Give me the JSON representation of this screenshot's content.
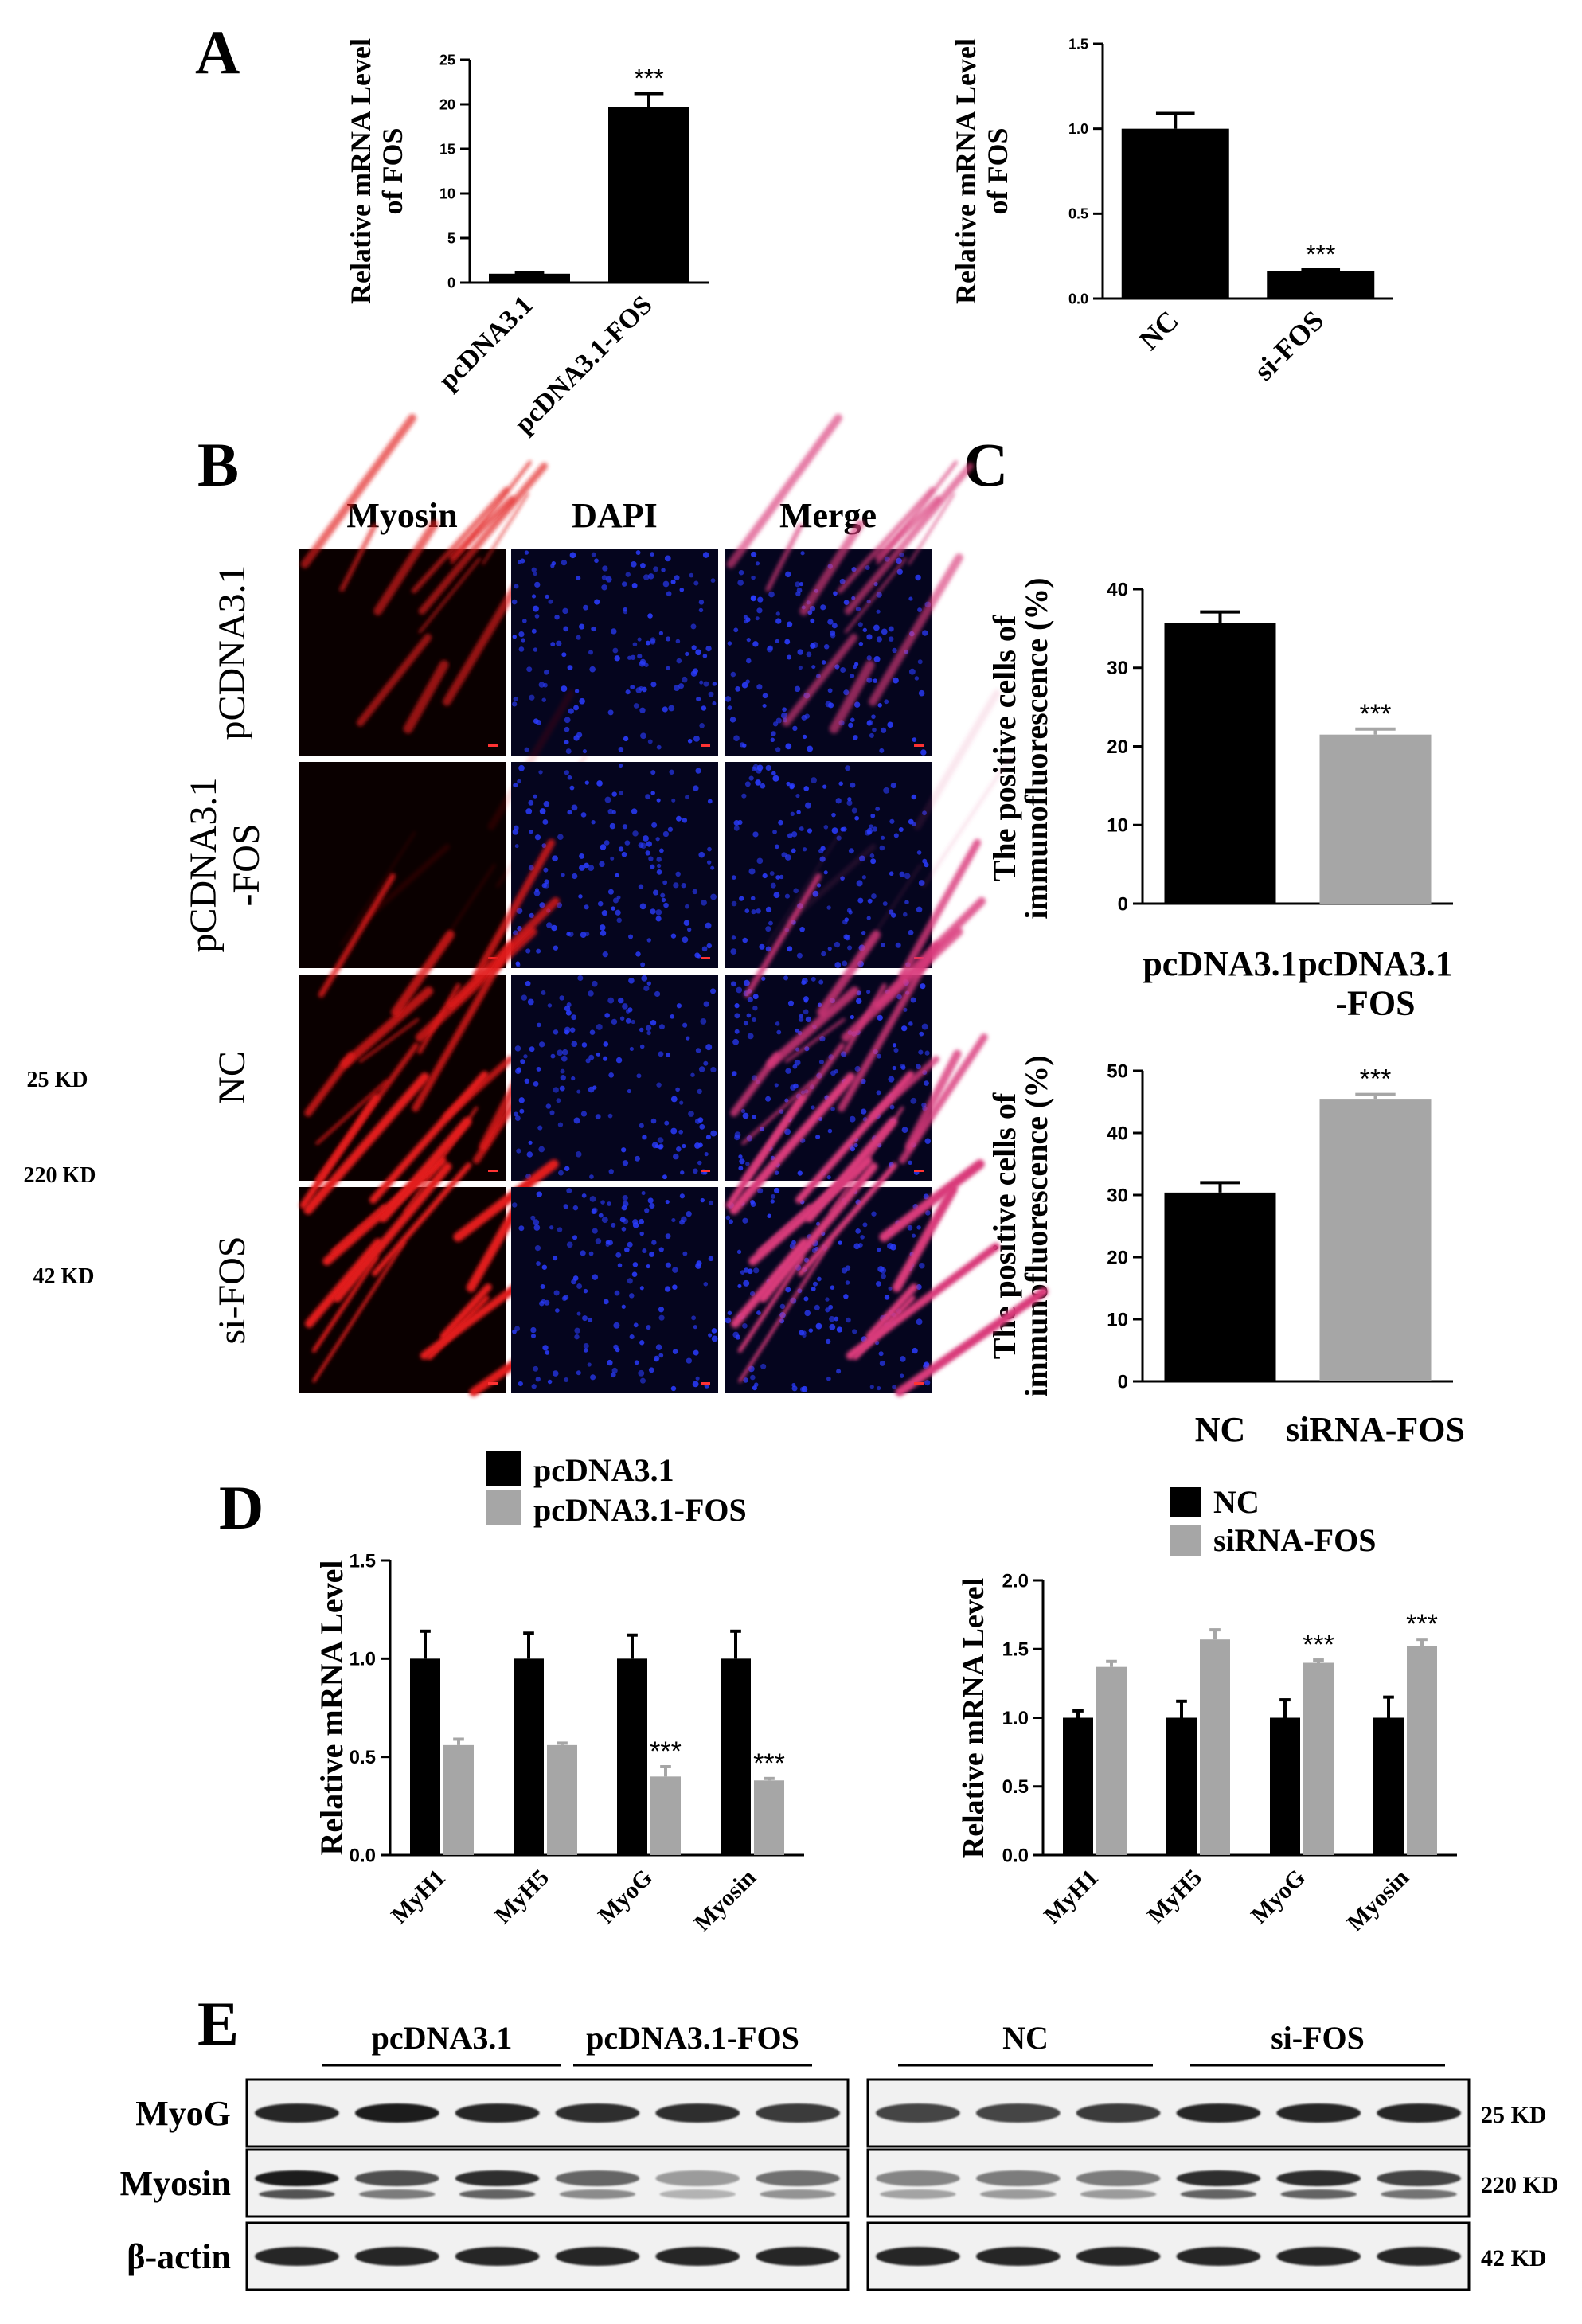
{
  "panel_labels": {
    "A": "A",
    "B": "B",
    "C": "C",
    "D": "D",
    "E": "E"
  },
  "chart_data": [
    {
      "id": "A1",
      "type": "bar",
      "categories": [
        "pcDNA3.1",
        "pcDNA3.1-FOS"
      ],
      "values": [
        1.0,
        19.7
      ],
      "errors": [
        0.15,
        1.5
      ],
      "significance": [
        "",
        "***"
      ],
      "ylabel": [
        "Relative mRNA Level",
        "of FOS"
      ],
      "ylim": [
        0,
        25
      ],
      "yticks": [
        0,
        5,
        10,
        15,
        20,
        25
      ],
      "colors": [
        "#000000",
        "#000000"
      ]
    },
    {
      "id": "A2",
      "type": "bar",
      "categories": [
        "NC",
        "si-FOS"
      ],
      "values": [
        1.0,
        0.16
      ],
      "errors": [
        0.09,
        0.01
      ],
      "significance": [
        "",
        "***"
      ],
      "ylabel": [
        "Relative mRNA Level",
        "of FOS"
      ],
      "ylim": [
        0,
        1.5
      ],
      "yticks": [
        "0.0",
        "0.5",
        "1.0",
        "1.5"
      ],
      "colors": [
        "#000000",
        "#000000"
      ]
    },
    {
      "id": "C1",
      "type": "bar",
      "categories": [
        [
          "pcDNA3.1"
        ],
        [
          "pcDNA3.1",
          "-FOS"
        ]
      ],
      "values": [
        35.7,
        21.5
      ],
      "errors": [
        1.4,
        0.7
      ],
      "significance": [
        "",
        "***"
      ],
      "ylabel": [
        "The positive cells of",
        "immunofluorescence (%)"
      ],
      "ylim": [
        0,
        40
      ],
      "yticks": [
        0,
        10,
        20,
        30,
        40
      ],
      "colors": [
        "#000000",
        "#a6a6a6"
      ]
    },
    {
      "id": "C2",
      "type": "bar",
      "categories": [
        [
          "NC"
        ],
        [
          "siRNA-FOS"
        ]
      ],
      "values": [
        30.4,
        45.5
      ],
      "errors": [
        1.6,
        0.7
      ],
      "significance": [
        "",
        "***"
      ],
      "ylabel": [
        "The positive cells of",
        "immunofluorescence (%)"
      ],
      "ylim": [
        0,
        50
      ],
      "yticks": [
        0,
        10,
        20,
        30,
        40,
        50
      ],
      "colors": [
        "#000000",
        "#a6a6a6"
      ]
    },
    {
      "id": "D1",
      "type": "bar",
      "categories": [
        "MyH1",
        "MyH5",
        "MyoG",
        "Myosin"
      ],
      "series": [
        {
          "name": "pcDNA3.1",
          "color": "#000000",
          "values": [
            1.0,
            1.0,
            1.0,
            1.0
          ],
          "errors": [
            0.14,
            0.13,
            0.12,
            0.14
          ],
          "significance": [
            "",
            "",
            "",
            ""
          ]
        },
        {
          "name": "pcDNA3.1-FOS",
          "color": "#a6a6a6",
          "values": [
            0.56,
            0.56,
            0.4,
            0.38
          ],
          "errors": [
            0.03,
            0.01,
            0.05,
            0.01
          ],
          "significance": [
            "",
            "",
            "***",
            "***"
          ]
        }
      ],
      "ylabel": [
        "Relative mRNA Level"
      ],
      "ylim": [
        0,
        1.5
      ],
      "yticks": [
        "0.0",
        "0.5",
        "1.0",
        "1.5"
      ],
      "legend": "top-left"
    },
    {
      "id": "D2",
      "type": "bar",
      "categories": [
        "MyH1",
        "MyH5",
        "MyoG",
        "Myosin"
      ],
      "series": [
        {
          "name": "NC",
          "color": "#000000",
          "values": [
            1.0,
            1.0,
            1.0,
            1.0
          ],
          "errors": [
            0.05,
            0.12,
            0.13,
            0.15
          ],
          "significance": [
            "",
            "",
            "",
            ""
          ]
        },
        {
          "name": "siRNA-FOS",
          "color": "#a6a6a6",
          "values": [
            1.37,
            1.57,
            1.4,
            1.52
          ],
          "errors": [
            0.04,
            0.07,
            0.02,
            0.05
          ],
          "significance": [
            "",
            "",
            "***",
            "***"
          ]
        }
      ],
      "ylabel": [
        "Relative mRNA Level"
      ],
      "ylim": [
        0,
        2.0
      ],
      "yticks": [
        "0.0",
        "0.5",
        "1.0",
        "1.5",
        "2.0"
      ],
      "legend": "top-left"
    }
  ],
  "micrographs": {
    "columns": [
      "Myosin",
      "DAPI",
      "Merge"
    ],
    "rows": [
      [
        "pCDNA3.1"
      ],
      [
        "pCDNA3.1",
        "-FOS"
      ],
      [
        "NC"
      ],
      [
        "si-FOS"
      ]
    ],
    "myosin_intensity": [
      0.6,
      0.08,
      0.75,
      1.0
    ]
  },
  "blot": {
    "groups_left": [
      "pcDNA3.1",
      "pcDNA3.1-FOS"
    ],
    "groups_right": [
      "NC",
      "si-FOS"
    ],
    "rows": [
      "MyoG",
      "Myosin",
      "β-actin"
    ],
    "sizes": [
      "25 KD",
      "220 KD",
      "42 KD"
    ],
    "band_intensity": {
      "left": [
        [
          0.9,
          0.95,
          0.9,
          0.85,
          0.85,
          0.8
        ],
        [
          0.95,
          0.7,
          0.85,
          0.6,
          0.35,
          0.55
        ],
        [
          0.9,
          0.9,
          0.9,
          0.9,
          0.9,
          0.9
        ]
      ],
      "right": [
        [
          0.75,
          0.75,
          0.8,
          0.9,
          0.9,
          0.9
        ],
        [
          0.45,
          0.5,
          0.5,
          0.85,
          0.85,
          0.75
        ],
        [
          0.9,
          0.9,
          0.9,
          0.9,
          0.9,
          0.9
        ]
      ]
    }
  },
  "side_sizes": [
    "25 KD",
    "220 KD",
    "42 KD"
  ]
}
